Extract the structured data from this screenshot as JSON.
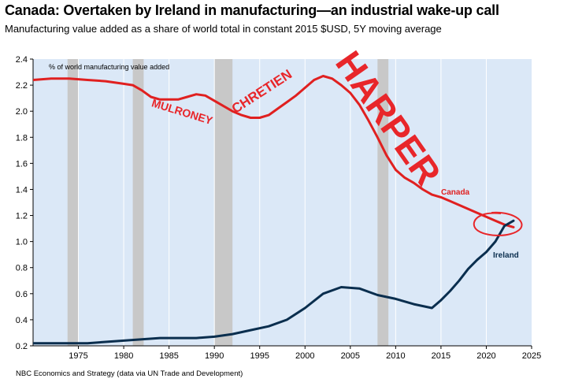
{
  "header": {
    "title": "Canada: Overtaken by Ireland in manufacturing—an industrial wake-up call",
    "subtitle": "Manufacturing value added as a share of world total in constant 2015 $USD, 5Y moving average"
  },
  "footer": {
    "source": "NBC Economics and Strategy (data via UN Trade and Development)"
  },
  "chart_data": {
    "type": "line",
    "title": "Canada: Overtaken by Ireland in manufacturing—an industrial wake-up call",
    "subtitle": "Manufacturing value added as a share of world total in constant 2015 $USD, 5Y moving average",
    "ylabel": "% of world manufacturing value added",
    "xlabel": "",
    "xlim": [
      1970,
      2025
    ],
    "ylim": [
      0.2,
      2.4
    ],
    "xticks": [
      1975,
      1980,
      1985,
      1990,
      1995,
      2000,
      2005,
      2010,
      2015,
      2020,
      2025
    ],
    "yticks": [
      0.2,
      0.4,
      0.6,
      0.8,
      1.0,
      1.2,
      1.4,
      1.6,
      1.8,
      2.0,
      2.2,
      2.4
    ],
    "grid": "vertical",
    "shaded_periods": [
      [
        1973.8,
        1975.0
      ],
      [
        1981.0,
        1982.2
      ],
      [
        1990.0,
        1992.0
      ],
      [
        2008.0,
        2009.2
      ]
    ],
    "series": [
      {
        "name": "Canada",
        "color": "#e02020",
        "x": [
          1970,
          1972,
          1974,
          1976,
          1978,
          1980,
          1981,
          1982,
          1983,
          1984,
          1985,
          1986,
          1987,
          1988,
          1989,
          1990,
          1991,
          1992,
          1993,
          1994,
          1995,
          1996,
          1997,
          1998,
          1999,
          2000,
          2001,
          2002,
          2003,
          2004,
          2005,
          2006,
          2007,
          2008,
          2009,
          2010,
          2011,
          2012,
          2013,
          2014,
          2015,
          2016,
          2017,
          2018,
          2019,
          2020,
          2021,
          2022,
          2023
        ],
        "values": [
          2.24,
          2.25,
          2.25,
          2.24,
          2.23,
          2.21,
          2.2,
          2.16,
          2.11,
          2.09,
          2.09,
          2.09,
          2.11,
          2.13,
          2.12,
          2.08,
          2.04,
          2.0,
          1.97,
          1.95,
          1.95,
          1.97,
          2.02,
          2.07,
          2.12,
          2.18,
          2.24,
          2.27,
          2.25,
          2.2,
          2.14,
          2.05,
          1.93,
          1.8,
          1.66,
          1.55,
          1.49,
          1.45,
          1.4,
          1.36,
          1.34,
          1.31,
          1.28,
          1.25,
          1.22,
          1.19,
          1.16,
          1.13,
          1.11
        ]
      },
      {
        "name": "Ireland",
        "color": "#0a2e4e",
        "x": [
          1970,
          1972,
          1974,
          1976,
          1978,
          1980,
          1982,
          1984,
          1986,
          1988,
          1990,
          1992,
          1994,
          1996,
          1998,
          2000,
          2002,
          2004,
          2006,
          2008,
          2010,
          2012,
          2014,
          2015,
          2016,
          2017,
          2018,
          2019,
          2020,
          2021,
          2022,
          2023
        ],
        "values": [
          0.22,
          0.22,
          0.22,
          0.22,
          0.23,
          0.24,
          0.25,
          0.26,
          0.26,
          0.26,
          0.27,
          0.29,
          0.32,
          0.35,
          0.4,
          0.49,
          0.6,
          0.65,
          0.64,
          0.59,
          0.56,
          0.52,
          0.49,
          0.55,
          0.62,
          0.7,
          0.79,
          0.86,
          0.92,
          1.0,
          1.12,
          1.16
        ]
      }
    ],
    "series_labels": [
      "Canada",
      "Ireland"
    ],
    "annotations": [
      "MULRONEY",
      "CHRETIEN",
      "HARPER"
    ]
  }
}
